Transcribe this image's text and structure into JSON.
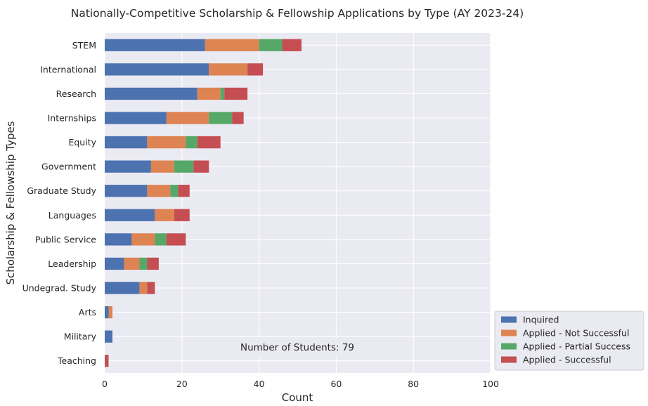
{
  "chart_data": {
    "type": "bar",
    "orientation": "horizontal",
    "stacked": true,
    "title": "Nationally-Competitive Scholarship & Fellowship Applications by Type (AY 2023-24)",
    "xlabel": "Count",
    "ylabel": "Scholarship & Fellowship Types",
    "xlim": [
      0,
      100
    ],
    "xticks": [
      0,
      20,
      40,
      60,
      80,
      100
    ],
    "xtick_labels": [
      "0",
      "20",
      "40",
      "60",
      "80",
      "100"
    ],
    "grid": true,
    "legend_position": "bottom-right-outside",
    "categories": [
      "STEM",
      "International",
      "Research",
      "Internships",
      "Equity",
      "Government",
      "Graduate Study",
      "Languages",
      "Public Service",
      "Leadership",
      "Undegrad. Study",
      "Arts",
      "Military",
      "Teaching"
    ],
    "series": [
      {
        "name": "Inquired",
        "color": "#4c72b0",
        "values": [
          26,
          27,
          24,
          16,
          11,
          12,
          11,
          13,
          7,
          5,
          9,
          1,
          2,
          0
        ]
      },
      {
        "name": "Applied - Not Successful",
        "color": "#dd8452",
        "values": [
          14,
          10,
          6,
          11,
          10,
          6,
          6,
          5,
          6,
          4,
          2,
          1,
          0,
          0
        ]
      },
      {
        "name": "Applied - Partial Success",
        "color": "#55a868",
        "values": [
          6,
          0,
          1,
          6,
          3,
          5,
          2,
          0,
          3,
          2,
          0,
          0,
          0,
          0
        ]
      },
      {
        "name": "Applied - Successful",
        "color": "#c44e52",
        "values": [
          5,
          4,
          6,
          3,
          6,
          4,
          3,
          4,
          5,
          3,
          2,
          0,
          0,
          1
        ]
      }
    ],
    "annotation": "Number of Students: 79"
  }
}
